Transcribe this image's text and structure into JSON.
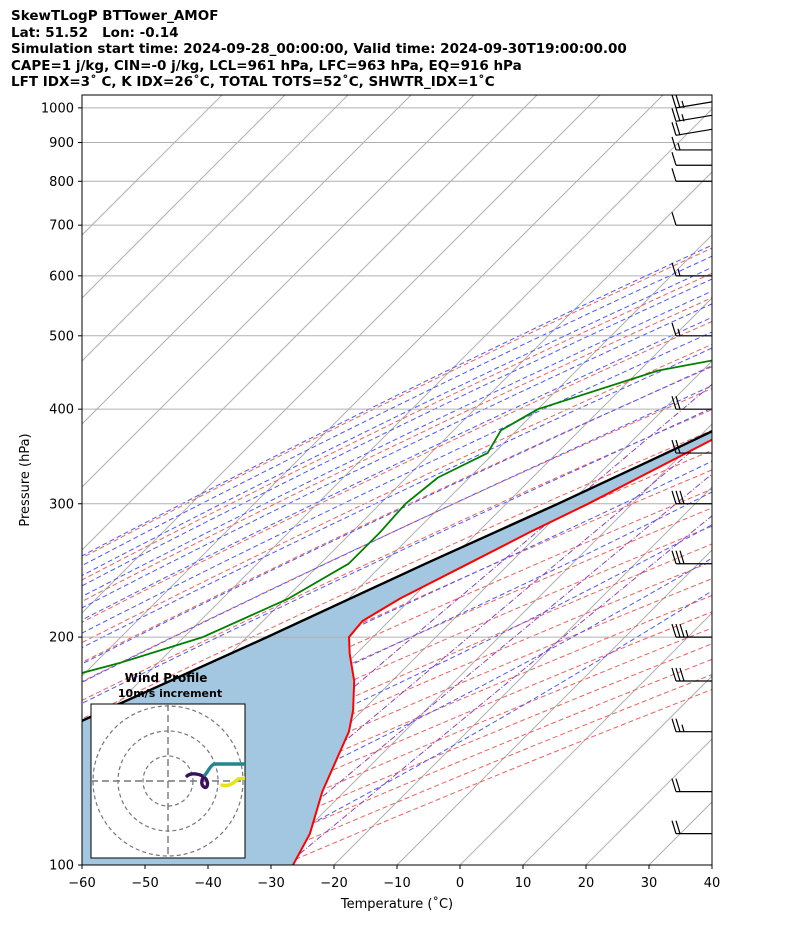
{
  "header": {
    "lines": [
      "SkewTLogP BTTower_AMOF",
      "Lat: 51.52   Lon: -0.14",
      "Simulation start time: 2024-09-28_00:00:00, Valid time: 2024-09-30T19:00:00.00",
      "CAPE=1 j/kg, CIN=-0 j/kg, LCL=961 hPa, LFC=963 hPa, EQ=916 hPa",
      "LFT IDX=3˚ C, K IDX=26˚C, TOTAL TOTS=52˚C, SHWTR_IDX=1˚C"
    ]
  },
  "chart_data": {
    "type": "skewt-logp",
    "xlabel": "Temperature (˚C)",
    "ylabel": "Pressure (hPa)",
    "xlim": [
      -60,
      40
    ],
    "ylim": [
      1040,
      100
    ],
    "x_ticks": [
      -60,
      -50,
      -40,
      -30,
      -20,
      -10,
      0,
      10,
      20,
      30,
      40
    ],
    "y_ticks": [
      1000,
      900,
      800,
      700,
      600,
      500,
      400,
      300,
      200,
      100
    ],
    "log_pressure_axis": true,
    "grid": true,
    "series": [
      {
        "name": "Temperature",
        "color": "#ff0000",
        "pressure": [
          1000,
          970,
          950,
          925,
          900,
          870,
          850,
          800,
          750,
          700,
          650,
          600,
          550,
          500,
          450,
          400,
          350,
          300,
          275,
          250,
          225,
          210,
          200,
          190,
          175,
          160,
          150,
          140,
          125,
          110,
          100
        ],
        "temperature": [
          12.8,
          12.7,
          12.9,
          13.0,
          13.0,
          12.1,
          11.6,
          10.3,
          7.0,
          4.2,
          1.0,
          -2.3,
          -7.0,
          -12.5,
          -17.5,
          -23.0,
          -29.5,
          -37.0,
          -41.8,
          -46.5,
          -51.8,
          -54.2,
          -53.8,
          -51.0,
          -46.0,
          -41.5,
          -38.8,
          -36.8,
          -33.5,
          -28.8,
          -26.5
        ]
      },
      {
        "name": "Dewpoint",
        "color": "#008000",
        "pressure": [
          1000,
          970,
          950,
          925,
          900,
          850,
          800,
          750,
          700,
          650,
          600,
          550,
          500,
          450,
          400,
          375,
          350,
          325,
          300,
          275,
          250,
          225,
          200,
          185,
          175,
          150,
          125,
          100
        ],
        "temperature": [
          12.5,
          12.0,
          11.7,
          11.8,
          12.5,
          12.2,
          10.0,
          6.7,
          1.0,
          -12.0,
          -18.0,
          -22.0,
          -23.0,
          -47.0,
          -60.0,
          -62.5,
          -61.0,
          -65.0,
          -66.0,
          -65.5,
          -65.5,
          -69.5,
          -77.0,
          -86.0,
          -94.0,
          -95.0,
          -94.5,
          -94.0
        ]
      },
      {
        "name": "Parcel profile",
        "color": "#000000",
        "pressure": [
          1000,
          970,
          961,
          950,
          925,
          900,
          850,
          800,
          750,
          700,
          650,
          600,
          550,
          500,
          450,
          400,
          350,
          300,
          250,
          200,
          150,
          125,
          100
        ],
        "temperature": [
          15.6,
          13.5,
          12.8,
          12.3,
          11.4,
          10.4,
          8.5,
          6.3,
          3.9,
          1.3,
          -1.6,
          -4.9,
          -8.8,
          -13.4,
          -18.7,
          -25.0,
          -32.6,
          -41.8,
          -53.3,
          -66.8,
          -85.0,
          -97.0,
          -110.0
        ]
      }
    ],
    "reference_lines": {
      "isotherms": "gray solid, every 10 ˚C",
      "dry_adiabats": "red dashed",
      "moist_adiabats": "blue dashed",
      "mixing_ratio": "purple dash-dot"
    },
    "wind_barbs": {
      "pressure": [
        1000,
        960,
        920,
        880,
        840,
        800,
        700,
        600,
        500,
        400,
        350,
        300,
        250,
        200,
        175,
        150,
        125,
        110
      ],
      "speed_kt": [
        25,
        25,
        20,
        15,
        10,
        10,
        10,
        15,
        15,
        20,
        20,
        30,
        30,
        35,
        30,
        25,
        20,
        20
      ]
    },
    "inset": {
      "title": "Wind Profile",
      "subtitle": "10m/s increment",
      "rings": [
        10,
        20,
        30
      ]
    }
  }
}
